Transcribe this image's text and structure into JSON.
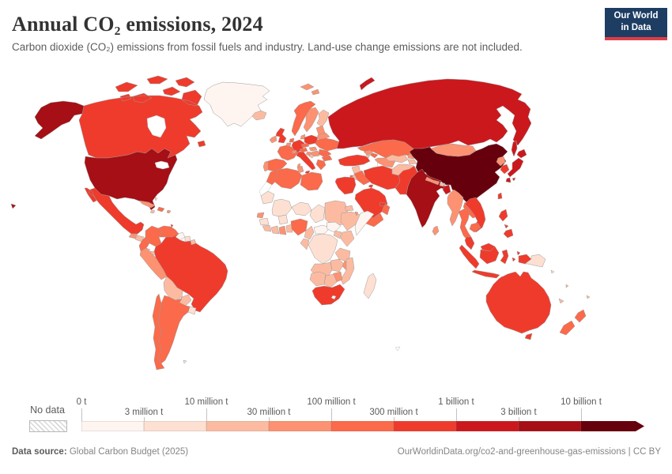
{
  "header": {
    "title": "Annual CO₂ emissions, 2024",
    "subtitle": "Carbon dioxide (CO₂) emissions from fossil fuels and industry. Land-use change emissions are not included.",
    "logo": {
      "line1": "Our World",
      "line2": "in Data",
      "bg_color": "#1d3d63",
      "accent_color": "#dc3e45"
    }
  },
  "footer": {
    "source_label": "Data source:",
    "source_value": " Global Carbon Budget (2025)",
    "link_text": "OurWorldinData.org/co2-and-greenhouse-gas-emissions | CC BY"
  },
  "chart_data": {
    "type": "choropleth",
    "title": "Annual CO₂ emissions, 2024",
    "unit": "tonnes of CO₂",
    "no_data_label": "No data",
    "legend_bins": [
      "0 t",
      "3 million t",
      "10 million t",
      "30 million t",
      "100 million t",
      "300 million t",
      "1 billion t",
      "3 billion t",
      "10 billion t"
    ],
    "bin_colors": [
      "#fff5f0",
      "#fee0d2",
      "#fcbba1",
      "#fc9272",
      "#fb6a4a",
      "#ef3b2c",
      "#cb181d",
      "#a50f15",
      "#67000d"
    ],
    "legend_arrow": "above 10 billion t",
    "countries": {
      "usa": {
        "label": "United States",
        "bin": 7
      },
      "canada": {
        "label": "Canada",
        "bin": 5
      },
      "greenland": {
        "label": "Greenland",
        "bin": 0
      },
      "iceland": {
        "label": "Iceland",
        "bin": 2
      },
      "mexico": {
        "label": "Mexico",
        "bin": 5
      },
      "guatemala": {
        "label": "Guatemala",
        "bin": 3
      },
      "honduras": {
        "label": "Honduras",
        "bin": 2
      },
      "nicaragua": {
        "label": "Nicaragua",
        "bin": 1
      },
      "costa-rica": {
        "label": "Costa Rica",
        "bin": 2
      },
      "panama": {
        "label": "Panama",
        "bin": 2
      },
      "cuba": {
        "label": "Cuba",
        "bin": 3
      },
      "hispaniola": {
        "label": "Dominican Republic",
        "bin": 4
      },
      "jamaica": {
        "label": "Jamaica",
        "bin": 2
      },
      "puerto-rico": {
        "label": "Puerto Rico",
        "bin": 3
      },
      "bahamas": {
        "label": "Bahamas",
        "bin": 1
      },
      "trinidad": {
        "label": "Trinidad and Tobago",
        "bin": 5
      },
      "colombia": {
        "label": "Colombia",
        "bin": 4
      },
      "venezuela": {
        "label": "Venezuela",
        "bin": 4
      },
      "guyana": {
        "label": "Guyana",
        "bin": 0
      },
      "suriname": {
        "label": "Suriname",
        "bin": 1
      },
      "french-guiana": {
        "label": "French Guiana",
        "bin": 2
      },
      "ecuador": {
        "label": "Ecuador",
        "bin": 4
      },
      "peru": {
        "label": "Peru",
        "bin": 3
      },
      "brazil": {
        "label": "Brazil",
        "bin": 5
      },
      "bolivia": {
        "label": "Bolivia",
        "bin": 2
      },
      "paraguay": {
        "label": "Paraguay",
        "bin": 2
      },
      "uruguay": {
        "label": "Uruguay",
        "bin": 1
      },
      "argentina": {
        "label": "Argentina",
        "bin": 4
      },
      "chile": {
        "label": "Chile",
        "bin": 4
      },
      "falkland": {
        "label": "Falkland Islands",
        "bin": 1
      },
      "norway": {
        "label": "Norway",
        "bin": 4
      },
      "sweden": {
        "label": "Sweden",
        "bin": 3
      },
      "finland": {
        "label": "Finland",
        "bin": 2
      },
      "svalbard": {
        "label": "Svalbard",
        "bin": 3
      },
      "denmark": {
        "label": "Denmark",
        "bin": 3
      },
      "uk": {
        "label": "United Kingdom",
        "bin": 5
      },
      "ireland": {
        "label": "Ireland",
        "bin": 3
      },
      "netherlands": {
        "label": "Netherlands",
        "bin": 4
      },
      "belgium": {
        "label": "Belgium",
        "bin": 3
      },
      "germany": {
        "label": "Germany",
        "bin": 5
      },
      "france": {
        "label": "France",
        "bin": 4
      },
      "spain": {
        "label": "Spain",
        "bin": 4
      },
      "portugal": {
        "label": "Portugal",
        "bin": 3
      },
      "italy": {
        "label": "Italy",
        "bin": 5
      },
      "sardinia": {
        "label": "Sardinia",
        "bin": 3
      },
      "switzerland": {
        "label": "Switzerland",
        "bin": 3
      },
      "austria": {
        "label": "Austria",
        "bin": 4
      },
      "czechia": {
        "label": "Czechia",
        "bin": 4
      },
      "poland": {
        "label": "Poland",
        "bin": 5
      },
      "baltics": {
        "label": "Baltic states",
        "bin": 3
      },
      "belarus": {
        "label": "Belarus",
        "bin": 3
      },
      "ukraine": {
        "label": "Ukraine",
        "bin": 4
      },
      "romania": {
        "label": "Romania",
        "bin": 4
      },
      "hungary": {
        "label": "Hungary",
        "bin": 3
      },
      "serbia": {
        "label": "Serbia",
        "bin": 3
      },
      "croatia": {
        "label": "Croatia",
        "bin": 3
      },
      "bosnia": {
        "label": "Bosnia and Herzegovina",
        "bin": 2
      },
      "bulgaria": {
        "label": "Bulgaria",
        "bin": 4
      },
      "greece": {
        "label": "Greece",
        "bin": 4
      },
      "russia": {
        "label": "Russia",
        "bin": 6
      },
      "turkey": {
        "label": "Turkey",
        "bin": 5
      },
      "georgia": {
        "label": "Georgia",
        "bin": 3
      },
      "azerbaijan": {
        "label": "Azerbaijan",
        "bin": 4
      },
      "armenia": {
        "label": "Armenia",
        "bin": 2
      },
      "syria": {
        "label": "Syria",
        "bin": 2
      },
      "jordan": {
        "label": "Jordan",
        "bin": 2
      },
      "israel": {
        "label": "Israel",
        "bin": 4
      },
      "iraq": {
        "label": "Iraq",
        "bin": 4
      },
      "iran": {
        "label": "Iran",
        "bin": 5
      },
      "saudi-arabia": {
        "label": "Saudi Arabia",
        "bin": 5
      },
      "yemen": {
        "label": "Yemen",
        "bin": 4
      },
      "oman": {
        "label": "Oman",
        "bin": 4
      },
      "uae": {
        "label": "United Arab Emirates",
        "bin": 5
      },
      "kuwait": {
        "label": "Kuwait",
        "bin": 5
      },
      "egypt": {
        "label": "Egypt",
        "bin": 5
      },
      "morocco": {
        "label": "Morocco",
        "bin": 4
      },
      "western-sahara": {
        "label": "Western Sahara",
        "no_data": true
      },
      "algeria": {
        "label": "Algeria",
        "bin": 4
      },
      "tunisia": {
        "label": "Tunisia",
        "bin": 3
      },
      "libya": {
        "label": "Libya",
        "bin": 4
      },
      "mauritania": {
        "label": "Mauritania",
        "bin": 1
      },
      "mali": {
        "label": "Mali",
        "bin": 1
      },
      "niger": {
        "label": "Niger",
        "bin": 1
      },
      "chad": {
        "label": "Chad",
        "bin": 1
      },
      "sudan": {
        "label": "Sudan",
        "bin": 2
      },
      "eritrea": {
        "label": "Eritrea",
        "bin": 2
      },
      "senegal": {
        "label": "Senegal",
        "bin": 3
      },
      "guinea": {
        "label": "Guinea",
        "bin": 1
      },
      "sierra-leone": {
        "label": "Sierra Leone",
        "bin": 2
      },
      "ivory-coast": {
        "label": "Cote d'Ivoire",
        "bin": 2
      },
      "ghana": {
        "label": "Ghana",
        "bin": 3
      },
      "togo-benin": {
        "label": "Togo and Benin",
        "bin": 2
      },
      "burkina-faso": {
        "label": "Burkina Faso",
        "bin": 1
      },
      "nigeria": {
        "label": "Nigeria",
        "bin": 4
      },
      "cameroon": {
        "label": "Cameroon",
        "bin": 2
      },
      "car": {
        "label": "Central African Republic",
        "bin": 0
      },
      "south-sudan": {
        "label": "South Sudan",
        "bin": 0
      },
      "ethiopia": {
        "label": "Ethiopia",
        "bin": 2
      },
      "somalia": {
        "label": "Somalia",
        "bin": 0
      },
      "djibouti": {
        "label": "Djibouti",
        "bin": 3
      },
      "kenya": {
        "label": "Kenya",
        "bin": 2
      },
      "uganda": {
        "label": "Uganda",
        "bin": 2
      },
      "drc": {
        "label": "Democratic Republic of Congo",
        "bin": 1
      },
      "gabon-congo": {
        "label": "Gabon and Congo",
        "bin": 2
      },
      "tanzania": {
        "label": "Tanzania",
        "bin": 2
      },
      "angola": {
        "label": "Angola",
        "bin": 2
      },
      "zambia": {
        "label": "Zambia",
        "bin": 2
      },
      "malawi": {
        "label": "Malawi",
        "bin": 3
      },
      "mozambique": {
        "label": "Mozambique",
        "bin": 2
      },
      "zimbabwe": {
        "label": "Zimbabwe",
        "bin": 3
      },
      "namibia": {
        "label": "Namibia",
        "bin": 2
      },
      "botswana": {
        "label": "Botswana",
        "bin": 2
      },
      "south-africa": {
        "label": "South Africa",
        "bin": 5
      },
      "lesotho": {
        "label": "Lesotho",
        "bin": 0
      },
      "madagascar": {
        "label": "Madagascar",
        "bin": 1
      },
      "kazakhstan": {
        "label": "Kazakhstan",
        "bin": 4
      },
      "uzbekistan": {
        "label": "Uzbekistan",
        "bin": 2
      },
      "turkmenistan": {
        "label": "Turkmenistan",
        "bin": 3
      },
      "kyrgyzstan": {
        "label": "Kyrgyzstan",
        "bin": 3
      },
      "tajikistan": {
        "label": "Tajikistan",
        "bin": 2
      },
      "afghanistan": {
        "label": "Afghanistan",
        "bin": 2
      },
      "pakistan": {
        "label": "Pakistan",
        "bin": 5
      },
      "india": {
        "label": "India",
        "bin": 7
      },
      "sri-lanka": {
        "label": "Sri Lanka",
        "bin": 3
      },
      "nepal": {
        "label": "Nepal",
        "bin": 3
      },
      "bhutan": {
        "label": "Bhutan",
        "bin": 2
      },
      "bangladesh": {
        "label": "Bangladesh",
        "bin": 6
      },
      "myanmar": {
        "label": "Myanmar",
        "bin": 3
      },
      "thailand": {
        "label": "Thailand",
        "bin": 4
      },
      "laos": {
        "label": "Laos",
        "bin": 4
      },
      "vietnam": {
        "label": "Vietnam",
        "bin": 5
      },
      "cambodia": {
        "label": "Cambodia",
        "bin": 4
      },
      "malaysia": {
        "label": "Malaysia",
        "bin": 5
      },
      "indonesia": {
        "label": "Indonesia",
        "bin": 5
      },
      "timor": {
        "label": "Timor-Leste",
        "bin": 1
      },
      "png": {
        "label": "Papua New Guinea",
        "bin": 1
      },
      "philippines": {
        "label": "Philippines",
        "bin": 5
      },
      "taiwan": {
        "label": "Taiwan",
        "bin": 5
      },
      "china": {
        "label": "China",
        "bin": 8
      },
      "mongolia": {
        "label": "Mongolia",
        "bin": 3
      },
      "north-korea": {
        "label": "North Korea",
        "bin": 3
      },
      "south-korea": {
        "label": "South Korea",
        "bin": 5
      },
      "japan": {
        "label": "Japan",
        "bin": 6
      },
      "australia": {
        "label": "Australia",
        "bin": 5
      },
      "new-zealand": {
        "label": "New Zealand",
        "bin": 4
      },
      "new-caledonia": {
        "label": "New Caledonia",
        "bin": 2
      },
      "fiji": {
        "label": "Fiji",
        "bin": 2
      },
      "solomon": {
        "label": "Solomon Islands",
        "bin": 1
      },
      "vanuatu": {
        "label": "Vanuatu",
        "bin": 2
      }
    }
  }
}
